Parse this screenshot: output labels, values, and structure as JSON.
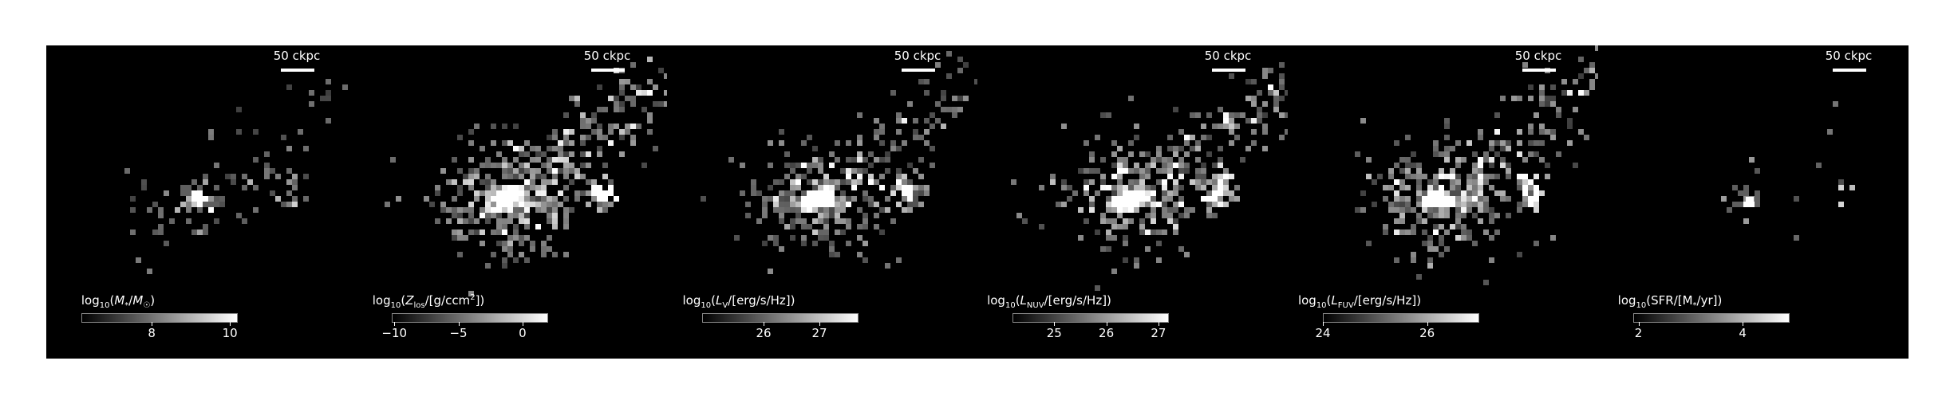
{
  "figure": {
    "scale_bar": "50 ckpc",
    "panels": [
      {
        "id": "stellar-mass",
        "quantity": "M*/M☉",
        "colorbar": {
          "min": 6.2,
          "max": 10.2,
          "ticks": [
            {
              "value": 8,
              "label": "8"
            },
            {
              "value": 10,
              "label": "10"
            }
          ]
        }
      },
      {
        "id": "metallicity",
        "quantity": "Zlos/[g/ccm2]",
        "colorbar": {
          "min": -10.2,
          "max": 2.0,
          "ticks": [
            {
              "value": -10,
              "label": "−10"
            },
            {
              "value": -5,
              "label": "−5"
            },
            {
              "value": 0,
              "label": "0"
            }
          ]
        }
      },
      {
        "id": "v-band",
        "quantity": "LV/[erg/s/Hz]",
        "colorbar": {
          "min": 24.9,
          "max": 27.7,
          "ticks": [
            {
              "value": 26,
              "label": "26"
            },
            {
              "value": 27,
              "label": "27"
            }
          ]
        }
      },
      {
        "id": "nuv",
        "quantity": "LNUV/[erg/s/Hz]",
        "colorbar": {
          "min": 24.2,
          "max": 27.2,
          "ticks": [
            {
              "value": 25,
              "label": "25"
            },
            {
              "value": 26,
              "label": "26"
            },
            {
              "value": 27,
              "label": "27"
            }
          ]
        }
      },
      {
        "id": "fuv",
        "quantity": "LFUV/[erg/s/Hz]",
        "colorbar": {
          "min": 24.0,
          "max": 27.0,
          "ticks": [
            {
              "value": 24,
              "label": "24"
            },
            {
              "value": 26,
              "label": "26"
            }
          ]
        }
      },
      {
        "id": "sfr",
        "quantity": "SFR/[M*/yr]",
        "colorbar": {
          "min": 1.9,
          "max": 4.9,
          "ticks": [
            {
              "value": 2,
              "label": "2"
            },
            {
              "value": 4,
              "label": "4"
            }
          ]
        }
      }
    ]
  },
  "labels": {
    "log": "log",
    "base": "10",
    "paren_open": "(",
    "paren_close": ")",
    "slash": "/",
    "mstar": "M",
    "star": "*",
    "sun": "☉",
    "zlos_Z": "Z",
    "zlos_sub": "los",
    "zlos_unit": "[g/ccm",
    "zlos_sup": "2",
    "zlos_end": "]",
    "L": "L",
    "v_sub": "V",
    "nuv_sub": "NUV",
    "fuv_sub": "FUV",
    "lum_unit": "[erg/s/Hz]",
    "sfr_pre": "SFR/[M",
    "sfr_post": "/yr]"
  }
}
